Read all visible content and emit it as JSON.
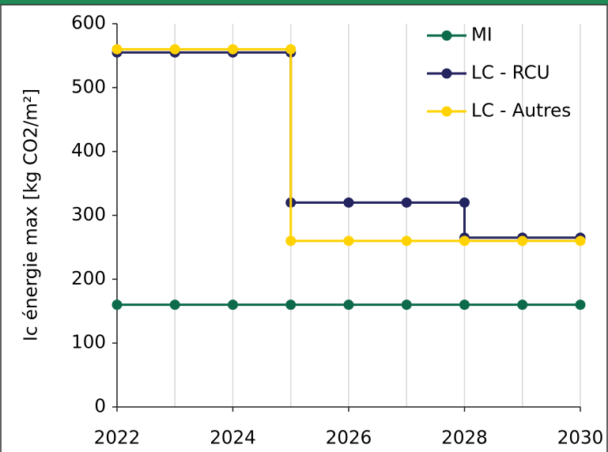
{
  "chart_data": {
    "type": "line",
    "ylabel": "Ic énergie max [kg CO2/m²]",
    "xlim": [
      2022,
      2030
    ],
    "xticks": [
      2022,
      2024,
      2026,
      2028,
      2030
    ],
    "xgrid": [
      2022,
      2023,
      2024,
      2025,
      2026,
      2027,
      2028,
      2029,
      2030
    ],
    "ylim": [
      0,
      600
    ],
    "yticks": [
      0,
      100,
      200,
      300,
      400,
      500,
      600
    ],
    "legend": "top-right",
    "series": [
      {
        "name": "MI",
        "color": "#0d6b4b",
        "x": [
          2022,
          2023,
          2024,
          2025,
          2026,
          2027,
          2028,
          2029,
          2030
        ],
        "values": [
          160,
          160,
          160,
          160,
          160,
          160,
          160,
          160,
          160
        ]
      },
      {
        "name": "LC - RCU",
        "color": "#23235f",
        "x": [
          2022,
          2023,
          2024,
          2025,
          2025,
          2026,
          2027,
          2028,
          2028,
          2029,
          2030
        ],
        "values": [
          555,
          555,
          555,
          555,
          320,
          320,
          320,
          320,
          265,
          265,
          265
        ]
      },
      {
        "name": "LC - Autres",
        "color": "#ffd200",
        "x": [
          2022,
          2023,
          2024,
          2025,
          2025,
          2026,
          2027,
          2028,
          2029,
          2030
        ],
        "values": [
          560,
          560,
          560,
          560,
          260,
          260,
          260,
          260,
          260,
          260
        ]
      }
    ]
  }
}
